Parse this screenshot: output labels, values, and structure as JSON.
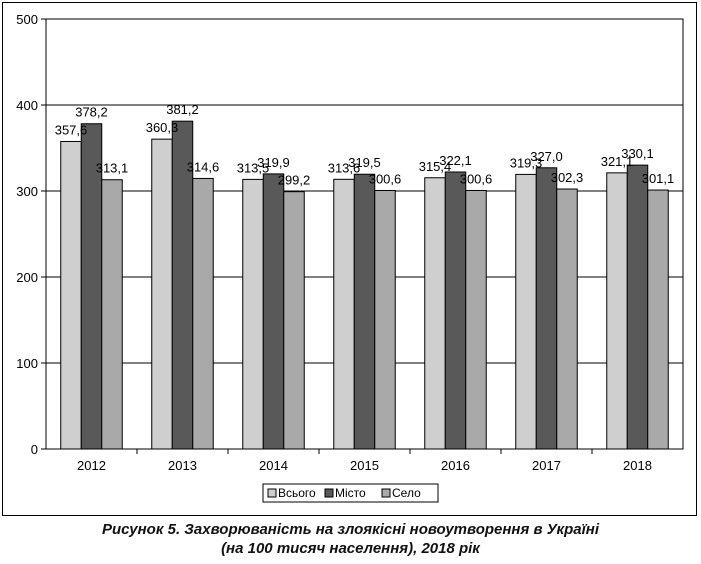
{
  "chart_data": {
    "type": "bar",
    "categories": [
      "2012",
      "2013",
      "2014",
      "2015",
      "2016",
      "2017",
      "2018"
    ],
    "series": [
      {
        "name": "Всього",
        "color": "#cfcfcf",
        "values": [
          357.6,
          360.3,
          313.5,
          313.6,
          315.4,
          319.3,
          321.1
        ],
        "labels": [
          "357,6",
          "360,3",
          "313,5",
          "313,6",
          "315,4",
          "319,3",
          "321,1"
        ]
      },
      {
        "name": "Місто",
        "color": "#595959",
        "values": [
          378.2,
          381.2,
          319.9,
          319.5,
          322.1,
          327.0,
          330.1
        ],
        "labels": [
          "378,2",
          "381,2",
          "319,9",
          "319,5",
          "322,1",
          "327,0",
          "330,1"
        ]
      },
      {
        "name": "Село",
        "color": "#a9a9a9",
        "values": [
          313.1,
          314.6,
          299.2,
          300.6,
          300.6,
          302.3,
          301.1
        ],
        "labels": [
          "313,1",
          "314,6",
          "299,2",
          "300,6",
          "300,6",
          "302,3",
          "301,1"
        ]
      }
    ],
    "ylim": [
      0,
      500
    ],
    "yticks": [
      "0",
      "100",
      "200",
      "300",
      "400",
      "500"
    ],
    "grid": true,
    "legend_position": "bottom"
  },
  "caption": {
    "line1": "Рисунок 5. Захворюваність на злоякісні новоутворення в Україні",
    "line2": "(на 100 тисяч населення), 2018 рік"
  }
}
